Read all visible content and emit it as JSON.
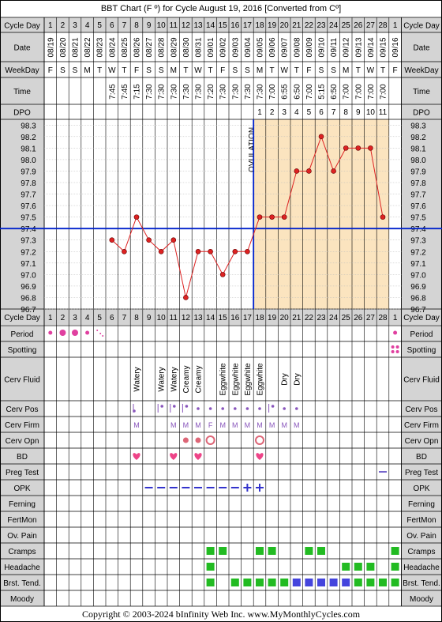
{
  "title": "BBT Chart (F º) for Cycle August 19, 2016  [Converted from Cº]",
  "footer": "Copyright © 2003-2024 bInfinity Web Inc.     www.MyMonthlyCycles.com",
  "ovulation_label": "OVULATION",
  "row_labels": {
    "cycle_day": "Cycle Day",
    "date": "Date",
    "weekday": "WeekDay",
    "time": "Time",
    "dpo": "DPO",
    "period": "Period",
    "spotting": "Spotting",
    "cerv_fluid": "Cerv Fluid",
    "cerv_pos": "Cerv Pos",
    "cerv_firm": "Cerv Firm",
    "cerv_opn": "Cerv Opn",
    "bd": "BD",
    "preg_test": "Preg Test",
    "opk": "OPK",
    "ferning": "Ferning",
    "fertmon": "FertMon",
    "ov_pain": "Ov. Pain",
    "cramps": "Cramps",
    "headache": "Headache",
    "brst_tend": "Brst. Tend.",
    "moody": "Moody"
  },
  "cycle_days": [
    "1",
    "2",
    "3",
    "4",
    "5",
    "6",
    "7",
    "8",
    "9",
    "10",
    "11",
    "12",
    "13",
    "14",
    "15",
    "16",
    "17",
    "18",
    "19",
    "20",
    "21",
    "22",
    "23",
    "24",
    "25",
    "26",
    "27",
    "28",
    "1"
  ],
  "dates": [
    "08/19",
    "08/20",
    "08/21",
    "08/22",
    "08/23",
    "08/24",
    "08/25",
    "08/26",
    "08/27",
    "08/28",
    "08/29",
    "08/30",
    "08/31",
    "09/01",
    "09/02",
    "09/03",
    "09/04",
    "09/05",
    "09/06",
    "09/07",
    "09/08",
    "09/09",
    "09/10",
    "09/11",
    "09/12",
    "09/13",
    "09/14",
    "09/15",
    "09/16"
  ],
  "weekdays": [
    "F",
    "S",
    "S",
    "M",
    "T",
    "W",
    "T",
    "F",
    "S",
    "S",
    "M",
    "T",
    "W",
    "T",
    "F",
    "S",
    "S",
    "M",
    "T",
    "W",
    "T",
    "F",
    "S",
    "S",
    "M",
    "T",
    "W",
    "T",
    "F"
  ],
  "times": [
    "",
    "",
    "",
    "",
    "",
    "7:45",
    "7:45",
    "7:15",
    "7:30",
    "7:30",
    "7:30",
    "7:30",
    "7:30",
    "7:20",
    "7:30",
    "7:30",
    "7:30",
    "7:30",
    "7:00",
    "6:55",
    "6:50",
    "7:00",
    "5:15",
    "6:50",
    "7:00",
    "7:00",
    "7:00",
    "7:00",
    ""
  ],
  "dpo": [
    "",
    "",
    "",
    "",
    "",
    "",
    "",
    "",
    "",
    "",
    "",
    "",
    "",
    "",
    "",
    "",
    "",
    "1",
    "2",
    "3",
    "4",
    "5",
    "6",
    "7",
    "8",
    "9",
    "10",
    "11",
    ""
  ],
  "chart_data": {
    "type": "line",
    "x": [
      6,
      7,
      8,
      9,
      10,
      11,
      12,
      13,
      14,
      15,
      16,
      17,
      18,
      19,
      20,
      21,
      22,
      23,
      24,
      25,
      26,
      27,
      28
    ],
    "y": [
      97.3,
      97.2,
      97.5,
      97.3,
      97.2,
      97.3,
      96.8,
      97.2,
      97.2,
      97.0,
      97.2,
      97.2,
      97.5,
      97.5,
      97.5,
      97.9,
      97.9,
      98.2,
      97.9,
      98.1,
      98.1,
      98.1,
      97.5
    ],
    "y_ticks": [
      "98.3",
      "98.2",
      "98.1",
      "98.0",
      "97.9",
      "97.8",
      "97.7",
      "97.6",
      "97.5",
      "97.4",
      "97.3",
      "97.2",
      "97.1",
      "97.0",
      "96.9",
      "96.8",
      "96.7"
    ],
    "ylim": [
      96.7,
      98.3
    ],
    "coverline": 97.4,
    "ovulation_day": 17,
    "line_color": "#dd2222",
    "grid": true
  },
  "cerv_fluid": [
    "",
    "",
    "",
    "",
    "",
    "",
    "",
    "Watery",
    "",
    "Watery",
    "Watery",
    "Creamy",
    "Creamy",
    "",
    "Eggwhite",
    "Eggwhite",
    "Eggwhite",
    "Eggwhite",
    "",
    "Dry",
    "Dry",
    "",
    "",
    "",
    "",
    "",
    "",
    "",
    ""
  ],
  "cerv_firm": [
    "",
    "",
    "",
    "",
    "",
    "",
    "",
    "M",
    "",
    "",
    "M",
    "M",
    "M",
    "F",
    "M",
    "M",
    "M",
    "M",
    "M",
    "M",
    "M",
    "",
    "",
    "",
    "",
    "",
    "",
    "",
    ""
  ],
  "colors": {
    "bg_gray": "#d4d4d4",
    "luteal": "#fbe4bf",
    "period": "#e040a0",
    "opk": "#3333cc",
    "symptom_green": "#22bb22",
    "symptom_blue": "#4444dd",
    "heart": "#ee4488",
    "circle": "#dd6677",
    "preg_line": "#7766cc"
  }
}
